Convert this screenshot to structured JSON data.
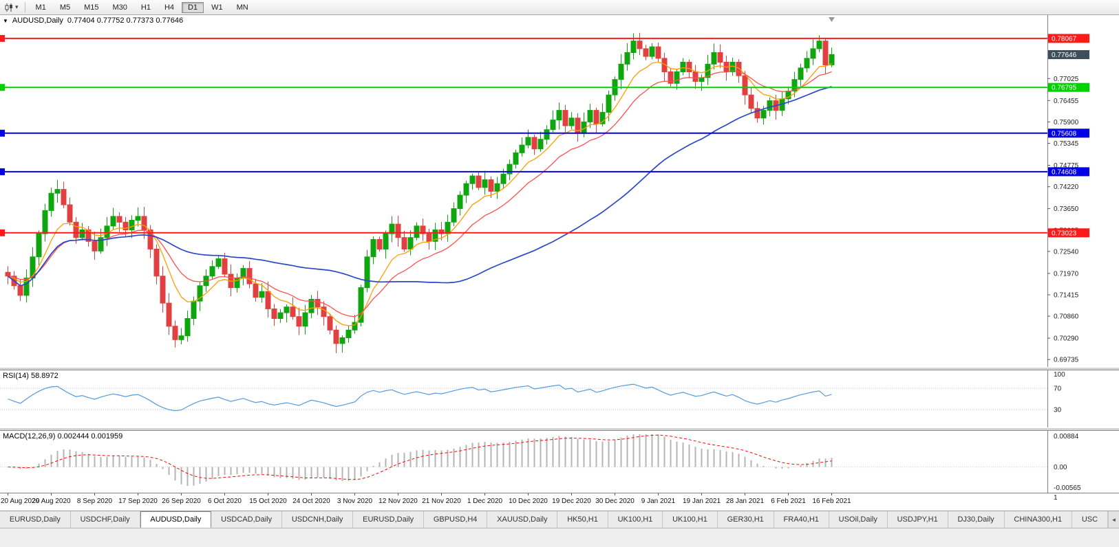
{
  "toolbar": {
    "chart_type_icon": "candlestick-chart-icon",
    "timeframes": [
      "M1",
      "M5",
      "M15",
      "M30",
      "H1",
      "H4",
      "D1",
      "W1",
      "MN"
    ],
    "active_timeframe": "D1"
  },
  "main_chart": {
    "header_symbol": "AUDUSD,Daily",
    "header_ohlc": "0.77404 0.77752 0.77373 0.77646",
    "ohlc": {
      "open": "0.77404",
      "high": "0.77752",
      "low": "0.77373",
      "close": "0.77646"
    },
    "current_price": "0.77646",
    "current_price_tag_color": "#3c4f5d",
    "y_ticks": [
      0.77025,
      0.76455,
      0.759,
      0.75345,
      0.74775,
      0.7422,
      0.7365,
      0.73095,
      0.7254,
      0.7197,
      0.71415,
      0.7086,
      0.7029,
      0.69735
    ],
    "hlines": [
      {
        "price": 0.78067,
        "label": "0.78067",
        "color": "#ff1a1a"
      },
      {
        "price": 0.76795,
        "label": "0.76795",
        "color": "#00d200"
      },
      {
        "price": 0.75608,
        "label": "0.75608",
        "color": "#0000e6"
      },
      {
        "price": 0.74608,
        "label": "0.74608",
        "color": "#0000e6"
      },
      {
        "price": 0.73023,
        "label": "0.73023",
        "color": "#ff1a1a"
      }
    ]
  },
  "rsi": {
    "label": "RSI(14) 58.8972",
    "period": 14,
    "value": "58.8972",
    "levels": [
      100,
      70,
      30
    ],
    "line_color": "#5599dd"
  },
  "macd": {
    "label": "MACD(12,26,9) 0.002444 0.001959",
    "values": [
      "0.002444",
      "0.001959"
    ],
    "scale_labels": [
      "0.00884",
      "0.00",
      "-0.00565"
    ],
    "scale_overflow": "1",
    "vmax": 0.00884,
    "vmin": -0.00565,
    "hist_color": "#b4b4b4",
    "signal_color": "#ff0000"
  },
  "x_axis": {
    "labels": [
      "20 Aug 2020",
      "29 Aug 2020",
      "8 Sep 2020",
      "17 Sep 2020",
      "26 Sep 2020",
      "6 Oct 2020",
      "15 Oct 2020",
      "24 Oct 2020",
      "3 Nov 2020",
      "12 Nov 2020",
      "21 Nov 2020",
      "1 Dec 2020",
      "10 Dec 2020",
      "19 Dec 2020",
      "30 Dec 2020",
      "9 Jan 2021",
      "19 Jan 2021",
      "28 Jan 2021",
      "6 Feb 2021",
      "16 Feb 2021"
    ]
  },
  "tabs": {
    "items": [
      "EURUSD,Daily",
      "USDCHF,Daily",
      "AUDUSD,Daily",
      "USDCAD,Daily",
      "USDCNH,Daily",
      "EURUSD,Daily",
      "GBPUSD,H4",
      "XAUUSD,Daily",
      "HK50,H1",
      "UK100,H1",
      "UK100,H1",
      "GER30,H1",
      "FRA40,H1",
      "USOil,Daily",
      "USDJPY,H1",
      "DJ30,Daily",
      "CHINA300,H1",
      "USC"
    ],
    "active_index": 2,
    "scroll_arrow": "◄"
  },
  "chart_data": {
    "type": "candlestick",
    "symbol": "AUDUSD",
    "timeframe": "Daily",
    "title": "AUDUSD,Daily",
    "price_axis": {
      "min": 0.6965,
      "max": 0.786
    },
    "first_open": 0.72,
    "x_label_every": 7,
    "closes": [
      0.719,
      0.7165,
      0.714,
      0.7185,
      0.724,
      0.73,
      0.736,
      0.7405,
      0.7415,
      0.7375,
      0.733,
      0.729,
      0.731,
      0.728,
      0.7255,
      0.729,
      0.732,
      0.7345,
      0.733,
      0.731,
      0.7335,
      0.7345,
      0.731,
      0.726,
      0.719,
      0.712,
      0.706,
      0.7025,
      0.7035,
      0.708,
      0.7125,
      0.7165,
      0.719,
      0.7215,
      0.7235,
      0.7195,
      0.716,
      0.7185,
      0.721,
      0.717,
      0.7135,
      0.715,
      0.7105,
      0.708,
      0.7095,
      0.711,
      0.7085,
      0.706,
      0.7095,
      0.713,
      0.711,
      0.7085,
      0.705,
      0.7015,
      0.703,
      0.705,
      0.707,
      0.716,
      0.724,
      0.7285,
      0.726,
      0.73,
      0.7325,
      0.729,
      0.726,
      0.729,
      0.732,
      0.73,
      0.728,
      0.731,
      0.73,
      0.733,
      0.7365,
      0.74,
      0.743,
      0.745,
      0.742,
      0.744,
      0.741,
      0.743,
      0.7455,
      0.748,
      0.751,
      0.753,
      0.755,
      0.752,
      0.7545,
      0.757,
      0.7595,
      0.762,
      0.758,
      0.76,
      0.756,
      0.759,
      0.762,
      0.7585,
      0.7615,
      0.766,
      0.77,
      0.774,
      0.777,
      0.78,
      0.778,
      0.776,
      0.7785,
      0.7755,
      0.772,
      0.769,
      0.772,
      0.7745,
      0.772,
      0.7695,
      0.7705,
      0.774,
      0.777,
      0.7745,
      0.772,
      0.7745,
      0.771,
      0.766,
      0.7625,
      0.76,
      0.762,
      0.7645,
      0.762,
      0.765,
      0.767,
      0.77,
      0.773,
      0.7755,
      0.778,
      0.78,
      0.7738,
      0.7765
    ],
    "wick_overrides": {
      "8": {
        "h": 0.744
      },
      "27": {
        "l": 0.7005
      },
      "53": {
        "l": 0.699
      },
      "101": {
        "h": 0.782
      },
      "121": {
        "l": 0.7588
      },
      "131": {
        "h": 0.7815
      }
    },
    "moving_averages": [
      {
        "period": 8,
        "type": "ema",
        "color": "#ff9d00",
        "width": 1.3
      },
      {
        "period": 16,
        "type": "ema",
        "color": "#ff5050",
        "width": 1.3
      },
      {
        "period": 50,
        "type": "sma",
        "color": "#2c46c8",
        "width": 1.7
      }
    ],
    "bull_color": "#0fa50f",
    "bear_color": "#e04040"
  }
}
